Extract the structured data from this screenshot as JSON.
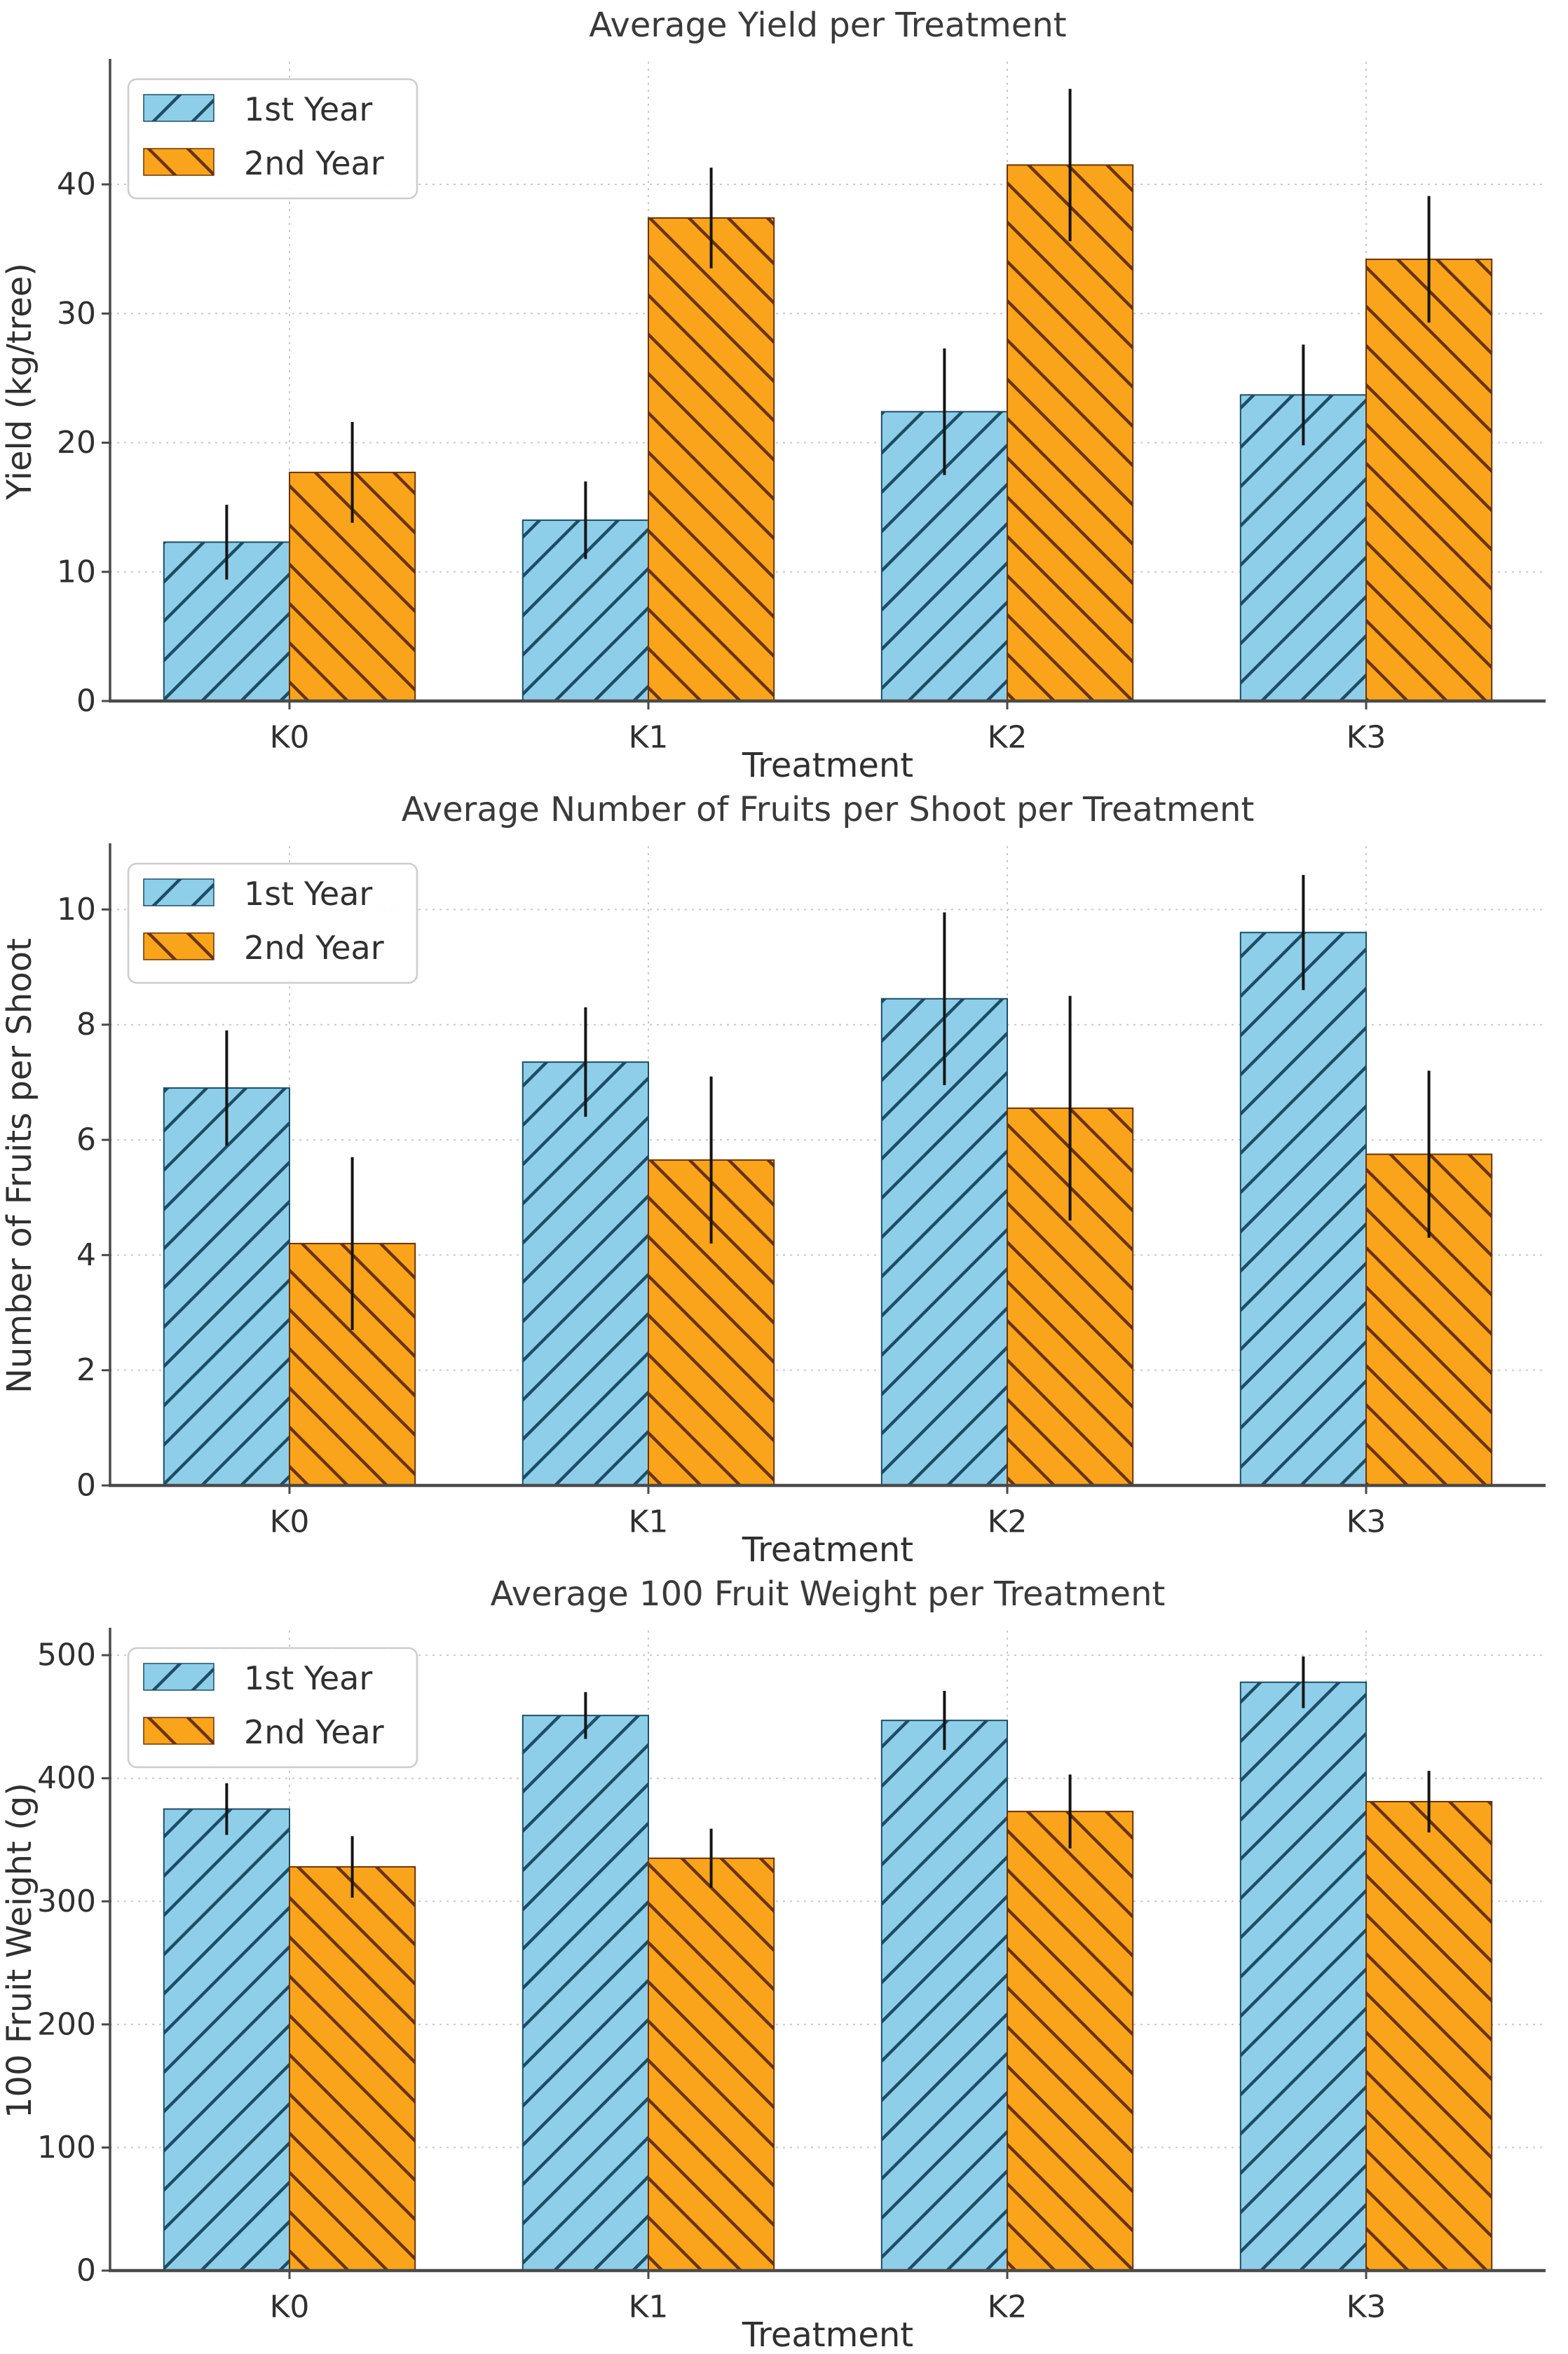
{
  "figure": {
    "background": "#ffffff"
  },
  "colors": {
    "first_year_fill": "#8FCEE9",
    "first_year_hatch": "#1B4E66",
    "second_year_fill": "#FAA41B",
    "second_year_hatch": "#6B3305",
    "errorbar": "#141414",
    "grid": "#c9c9c9",
    "axis": "#4a4a4a",
    "text": "#303030",
    "title": "#3a3a3a",
    "legend_border": "#cccccc",
    "legend_bg": "#ffffff"
  },
  "legend": {
    "position": "upper-left",
    "items": [
      {
        "label": "1st Year",
        "series": "first_year",
        "hatch": "/"
      },
      {
        "label": "2nd Year",
        "series": "second_year",
        "hatch": "\\"
      }
    ]
  },
  "chart_data": [
    {
      "type": "bar",
      "title": "Average Yield per Treatment",
      "xlabel": "Treatment",
      "ylabel": "Yield (kg/tree)",
      "categories": [
        "K0",
        "K1",
        "K2",
        "K3"
      ],
      "yticks": [
        0,
        10,
        20,
        30,
        40
      ],
      "ylim": [
        0,
        49.5
      ],
      "grid": true,
      "legend_position": "upper-left",
      "series": [
        {
          "name": "1st Year",
          "hatch": "/",
          "fill": "#8FCEE9",
          "hatch_color": "#1B4E66",
          "values": [
            12.3,
            14.0,
            22.4,
            23.7
          ],
          "errors": [
            2.9,
            3.0,
            4.9,
            3.9
          ]
        },
        {
          "name": "2nd Year",
          "hatch": "\\",
          "fill": "#FAA41B",
          "hatch_color": "#6B3305",
          "values": [
            17.7,
            37.4,
            41.5,
            34.2
          ],
          "errors": [
            3.9,
            3.9,
            5.9,
            4.9
          ]
        }
      ]
    },
    {
      "type": "bar",
      "title": "Average Number of Fruits per Shoot per Treatment",
      "xlabel": "Treatment",
      "ylabel": "Number of Fruits per Shoot",
      "categories": [
        "K0",
        "K1",
        "K2",
        "K3"
      ],
      "yticks": [
        0,
        2,
        4,
        6,
        8,
        10
      ],
      "ylim": [
        0,
        11.1
      ],
      "grid": true,
      "legend_position": "upper-left",
      "series": [
        {
          "name": "1st Year",
          "hatch": "/",
          "fill": "#8FCEE9",
          "hatch_color": "#1B4E66",
          "values": [
            6.9,
            7.35,
            8.45,
            9.6
          ],
          "errors": [
            1.0,
            0.95,
            1.5,
            1.0
          ]
        },
        {
          "name": "2nd Year",
          "hatch": "\\",
          "fill": "#FAA41B",
          "hatch_color": "#6B3305",
          "values": [
            4.2,
            5.65,
            6.55,
            5.75
          ],
          "errors": [
            1.5,
            1.45,
            1.95,
            1.45
          ]
        }
      ]
    },
    {
      "type": "bar",
      "title": "Average 100 Fruit Weight per Treatment",
      "xlabel": "Treatment",
      "ylabel": "100 Fruit Weight (g)",
      "categories": [
        "K0",
        "K1",
        "K2",
        "K3"
      ],
      "yticks": [
        0,
        100,
        200,
        300,
        400,
        500
      ],
      "ylim": [
        0,
        520
      ],
      "grid": true,
      "legend_position": "upper-left",
      "series": [
        {
          "name": "1st Year",
          "hatch": "/",
          "fill": "#8FCEE9",
          "hatch_color": "#1B4E66",
          "values": [
            375,
            451,
            447,
            478
          ],
          "errors": [
            21,
            19,
            24,
            21
          ]
        },
        {
          "name": "2nd Year",
          "hatch": "\\",
          "fill": "#FAA41B",
          "hatch_color": "#6B3305",
          "values": [
            328,
            335,
            373,
            381
          ],
          "errors": [
            25,
            24,
            30,
            25
          ]
        }
      ]
    }
  ]
}
